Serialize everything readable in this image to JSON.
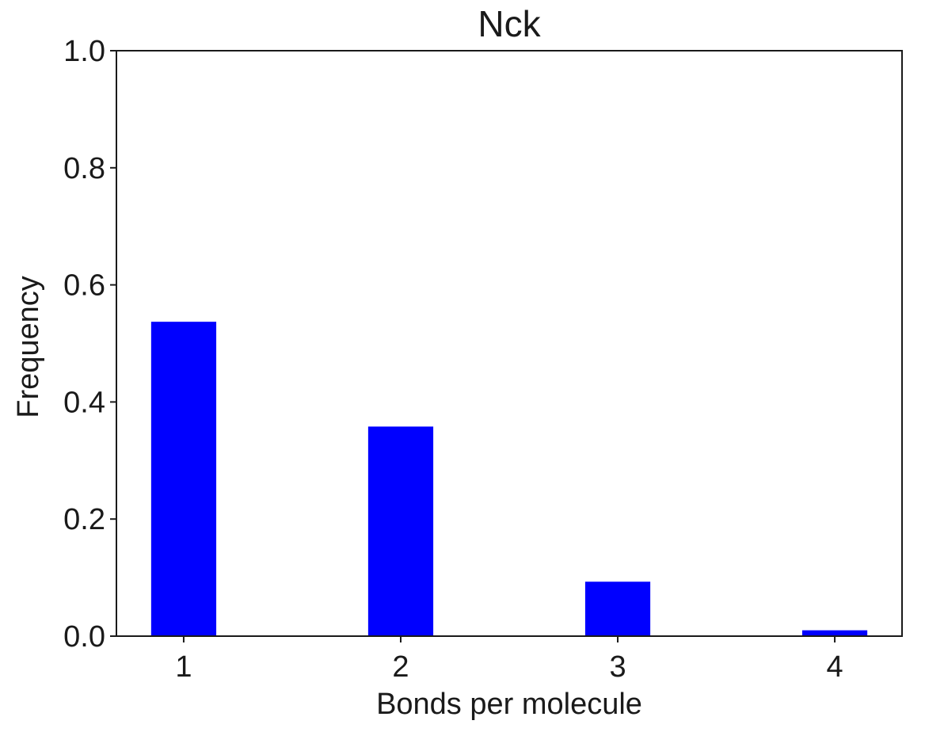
{
  "chart_data": {
    "type": "bar",
    "title": "Nck",
    "xlabel": "Bonds per molecule",
    "ylabel": "Frequency",
    "categories": [
      "1",
      "2",
      "3",
      "4"
    ],
    "x": [
      1,
      2,
      3,
      4
    ],
    "values": [
      0.537,
      0.358,
      0.093,
      0.01
    ],
    "xlim": [
      0.69,
      4.31
    ],
    "ylim": [
      0,
      1.0
    ],
    "yticks": [
      0.0,
      0.2,
      0.4,
      0.6,
      0.8,
      1.0
    ],
    "ytick_labels": [
      "0.0",
      "0.2",
      "0.4",
      "0.6",
      "0.8",
      "1.0"
    ],
    "bar_color": "#0000ff",
    "grid": false,
    "legend": false
  }
}
